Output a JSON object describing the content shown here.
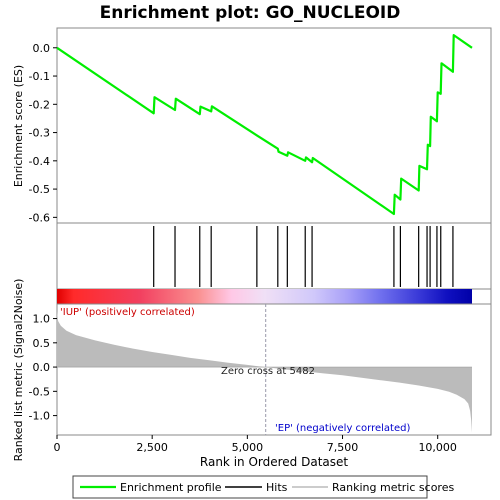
{
  "chart_data": {
    "type": "line",
    "title": "Enrichment plot: GO_NUCLEOID",
    "top_panel": {
      "ylabel": "Enrichment score (ES)",
      "ylim": [
        -0.62,
        0.07
      ],
      "yticks": [
        0.0,
        -0.1,
        -0.2,
        -0.3,
        -0.4,
        -0.5,
        -0.6
      ],
      "ytick_labels": [
        "0.0",
        "-0.1",
        "-0.2",
        "-0.3",
        "-0.4",
        "-0.5",
        "-0.6"
      ],
      "series": [
        {
          "name": "Enrichment profile",
          "color": "#00ee00",
          "x": [
            0,
            2540,
            2560,
            3100,
            3120,
            3750,
            3770,
            4050,
            4070,
            5250,
            5800,
            5820,
            6050,
            6070,
            6520,
            6540,
            6700,
            6720,
            8850,
            8870,
            9020,
            9040,
            9500,
            9520,
            9720,
            9740,
            9800,
            9820,
            9980,
            10000,
            10080,
            10100,
            10400,
            10420,
            10900
          ],
          "y": [
            0.0,
            -0.232,
            -0.175,
            -0.22,
            -0.18,
            -0.235,
            -0.208,
            -0.225,
            -0.207,
            -0.31,
            -0.357,
            -0.368,
            -0.382,
            -0.37,
            -0.4,
            -0.388,
            -0.405,
            -0.39,
            -0.588,
            -0.52,
            -0.537,
            -0.463,
            -0.505,
            -0.418,
            -0.43,
            -0.343,
            -0.348,
            -0.244,
            -0.26,
            -0.158,
            -0.163,
            -0.055,
            -0.085,
            0.045,
            0.0
          ]
        }
      ]
    },
    "hits": [
      2540,
      3100,
      3750,
      4050,
      5250,
      5800,
      6050,
      6520,
      6700,
      8850,
      9020,
      9500,
      9720,
      9800,
      9980,
      10080,
      10400
    ],
    "bottom_panel": {
      "ylabel": "Ranked list metric (Signal2Noise)",
      "ylim": [
        -1.4,
        1.3
      ],
      "yticks": [
        1.0,
        0.5,
        0.0,
        -0.5,
        -1.0
      ],
      "ytick_labels": [
        "1.0",
        "0.5",
        "0.0",
        "-0.5",
        "-1.0"
      ],
      "metric_profile": {
        "x": [
          0,
          30,
          100,
          250,
          500,
          1000,
          1500,
          2000,
          2500,
          3000,
          3500,
          4000,
          4500,
          5000,
          5482,
          6000,
          6500,
          7000,
          7500,
          8000,
          8500,
          9000,
          9500,
          10000,
          10300,
          10500,
          10700,
          10800,
          10850,
          10880,
          10900
        ],
        "y": [
          1.15,
          0.95,
          0.85,
          0.75,
          0.66,
          0.55,
          0.46,
          0.38,
          0.31,
          0.25,
          0.19,
          0.14,
          0.09,
          0.045,
          0.0,
          -0.05,
          -0.09,
          -0.13,
          -0.17,
          -0.22,
          -0.27,
          -0.32,
          -0.38,
          -0.45,
          -0.51,
          -0.57,
          -0.66,
          -0.75,
          -0.9,
          -1.1,
          -1.35
        ]
      },
      "zero_cross": 5482,
      "zero_cross_label": "Zero cross at 5482",
      "pos_label": "'IUP' (positively correlated)",
      "neg_label": "'EP' (negatively correlated)",
      "pos_color": "#cc0000",
      "neg_color": "#0000cc"
    },
    "xlabel": "Rank in Ordered Dataset",
    "xlim": [
      0,
      11400
    ],
    "xticks": [
      0,
      2500,
      5000,
      7500,
      10000
    ],
    "xtick_labels": [
      "0",
      "2,500",
      "5,000",
      "7,500",
      "10,000"
    ],
    "n_genes": 10900,
    "legend": {
      "placement": "bottom",
      "items": [
        {
          "label": "Enrichment profile",
          "color": "#00ee00"
        },
        {
          "label": "Hits",
          "color": "#000000"
        },
        {
          "label": "Ranking metric scores",
          "color": "#bbbbbb"
        }
      ]
    }
  }
}
